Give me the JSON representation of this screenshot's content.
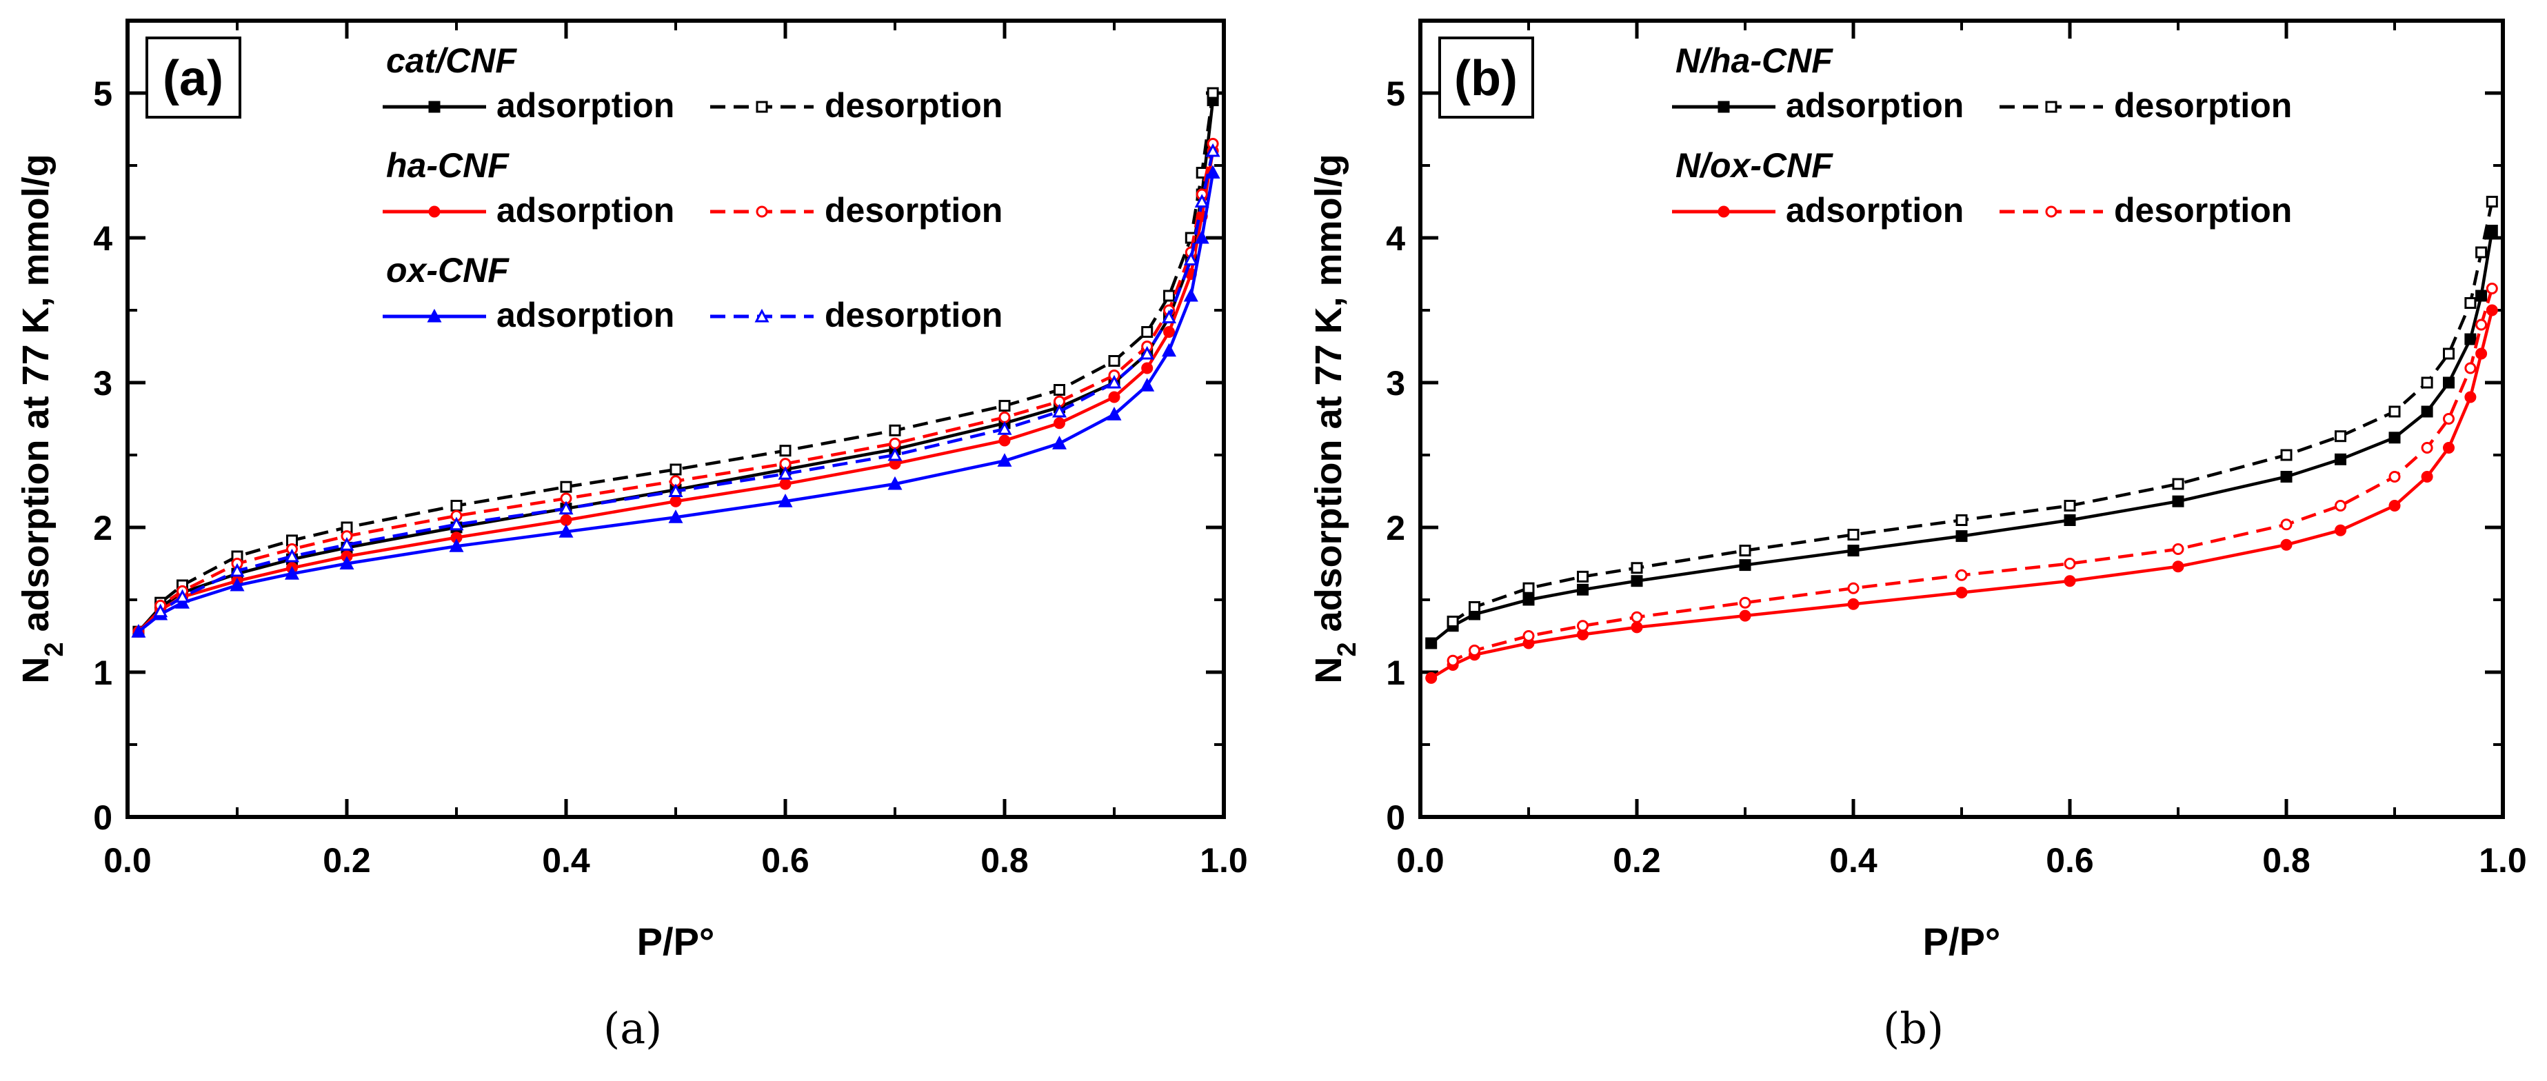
{
  "chart_data": [
    {
      "type": "line",
      "panel_label": "(a)",
      "caption": "(a)",
      "xlabel": "P/P°",
      "ylabel_main": "N",
      "ylabel_sub": "2",
      "ylabel_rest": " adsorption at 77 K, mmol/g",
      "xlim": [
        0.0,
        1.0
      ],
      "ylim": [
        0,
        5.5
      ],
      "xticks": [
        "0.0",
        "0.2",
        "0.4",
        "0.6",
        "0.8",
        "1.0"
      ],
      "yticks": [
        "0",
        "1",
        "2",
        "3",
        "4",
        "5"
      ],
      "legend": [
        {
          "sample": "cat/CNF",
          "adsorption": "adsorption",
          "desorption": "desorption",
          "color": "#000000"
        },
        {
          "sample": "ha-CNF",
          "adsorption": "adsorption",
          "desorption": "desorption",
          "color": "#ff0000"
        },
        {
          "sample": "ox-CNF",
          "adsorption": "adsorption",
          "desorption": "desorption",
          "color": "#0000ff"
        }
      ],
      "series": [
        {
          "name": "cat/CNF adsorption",
          "style": "solid",
          "marker": "square-filled",
          "color": "#000000",
          "x": [
            0.01,
            0.03,
            0.05,
            0.1,
            0.15,
            0.2,
            0.3,
            0.4,
            0.5,
            0.6,
            0.7,
            0.8,
            0.85,
            0.9,
            0.93,
            0.95,
            0.97,
            0.98,
            0.99
          ],
          "y": [
            1.28,
            1.45,
            1.55,
            1.68,
            1.78,
            1.86,
            2.0,
            2.13,
            2.26,
            2.4,
            2.54,
            2.72,
            2.83,
            3.0,
            3.2,
            3.45,
            3.85,
            4.3,
            4.95
          ]
        },
        {
          "name": "cat/CNF desorption",
          "style": "dashed",
          "marker": "square-open",
          "color": "#000000",
          "x": [
            0.99,
            0.98,
            0.97,
            0.95,
            0.93,
            0.9,
            0.85,
            0.8,
            0.7,
            0.6,
            0.5,
            0.4,
            0.3,
            0.2,
            0.15,
            0.1,
            0.05,
            0.03
          ],
          "y": [
            5.0,
            4.45,
            4.0,
            3.6,
            3.35,
            3.15,
            2.95,
            2.84,
            2.67,
            2.53,
            2.4,
            2.28,
            2.15,
            2.0,
            1.91,
            1.8,
            1.6,
            1.48
          ]
        },
        {
          "name": "ha-CNF adsorption",
          "style": "solid",
          "marker": "circle-filled",
          "color": "#ff0000",
          "x": [
            0.01,
            0.03,
            0.05,
            0.1,
            0.15,
            0.2,
            0.3,
            0.4,
            0.5,
            0.6,
            0.7,
            0.8,
            0.85,
            0.9,
            0.93,
            0.95,
            0.97,
            0.98,
            0.99
          ],
          "y": [
            1.28,
            1.43,
            1.52,
            1.63,
            1.72,
            1.8,
            1.93,
            2.05,
            2.18,
            2.3,
            2.44,
            2.6,
            2.72,
            2.9,
            3.1,
            3.35,
            3.75,
            4.15,
            4.6
          ]
        },
        {
          "name": "ha-CNF desorption",
          "style": "dashed",
          "marker": "circle-open",
          "color": "#ff0000",
          "x": [
            0.99,
            0.98,
            0.97,
            0.95,
            0.93,
            0.9,
            0.85,
            0.8,
            0.7,
            0.6,
            0.5,
            0.4,
            0.3,
            0.2,
            0.15,
            0.1,
            0.05,
            0.03
          ],
          "y": [
            4.65,
            4.3,
            3.9,
            3.5,
            3.25,
            3.05,
            2.87,
            2.76,
            2.58,
            2.44,
            2.32,
            2.2,
            2.08,
            1.94,
            1.85,
            1.75,
            1.56,
            1.46
          ]
        },
        {
          "name": "ox-CNF adsorption",
          "style": "solid",
          "marker": "triangle-filled",
          "color": "#0000ff",
          "x": [
            0.01,
            0.03,
            0.05,
            0.1,
            0.15,
            0.2,
            0.3,
            0.4,
            0.5,
            0.6,
            0.7,
            0.8,
            0.85,
            0.9,
            0.93,
            0.95,
            0.97,
            0.98,
            0.99
          ],
          "y": [
            1.28,
            1.4,
            1.48,
            1.6,
            1.68,
            1.75,
            1.87,
            1.97,
            2.07,
            2.18,
            2.3,
            2.46,
            2.58,
            2.78,
            2.98,
            3.22,
            3.6,
            4.0,
            4.45
          ]
        },
        {
          "name": "ox-CNF desorption",
          "style": "dashed",
          "marker": "triangle-open",
          "color": "#0000ff",
          "x": [
            0.99,
            0.98,
            0.97,
            0.95,
            0.93,
            0.9,
            0.85,
            0.8,
            0.7,
            0.6,
            0.5,
            0.4,
            0.3,
            0.2,
            0.15,
            0.1,
            0.05,
            0.03
          ],
          "y": [
            4.6,
            4.25,
            3.85,
            3.45,
            3.2,
            3.0,
            2.8,
            2.68,
            2.5,
            2.37,
            2.25,
            2.13,
            2.02,
            1.88,
            1.8,
            1.7,
            1.52,
            1.42
          ]
        }
      ]
    },
    {
      "type": "line",
      "panel_label": "(b)",
      "caption": "(b)",
      "xlabel": "P/P°",
      "ylabel_main": "N",
      "ylabel_sub": "2",
      "ylabel_rest": " adsorption at 77 K, mmol/g",
      "xlim": [
        0.0,
        1.0
      ],
      "ylim": [
        0,
        5.5
      ],
      "xticks": [
        "0.0",
        "0.2",
        "0.4",
        "0.6",
        "0.8",
        "1.0"
      ],
      "yticks": [
        "0",
        "1",
        "2",
        "3",
        "4",
        "5"
      ],
      "legend": [
        {
          "sample": "N/ha-CNF",
          "adsorption": "adsorption",
          "desorption": "desorption",
          "color": "#000000"
        },
        {
          "sample": "N/ox-CNF",
          "adsorption": "adsorption",
          "desorption": "desorption",
          "color": "#ff0000"
        }
      ],
      "series": [
        {
          "name": "N/ha-CNF adsorption",
          "style": "solid",
          "marker": "square-filled",
          "color": "#000000",
          "x": [
            0.01,
            0.03,
            0.05,
            0.1,
            0.15,
            0.2,
            0.3,
            0.4,
            0.5,
            0.6,
            0.7,
            0.8,
            0.85,
            0.9,
            0.93,
            0.95,
            0.97,
            0.98,
            0.99
          ],
          "y": [
            1.2,
            1.32,
            1.4,
            1.5,
            1.57,
            1.63,
            1.74,
            1.84,
            1.94,
            2.05,
            2.18,
            2.35,
            2.47,
            2.62,
            2.8,
            3.0,
            3.3,
            3.6,
            4.05
          ]
        },
        {
          "name": "N/ha-CNF desorption",
          "style": "dashed",
          "marker": "square-open",
          "color": "#000000",
          "x": [
            0.99,
            0.98,
            0.97,
            0.95,
            0.93,
            0.9,
            0.85,
            0.8,
            0.7,
            0.6,
            0.5,
            0.4,
            0.3,
            0.2,
            0.15,
            0.1,
            0.05,
            0.03
          ],
          "y": [
            4.25,
            3.9,
            3.55,
            3.2,
            3.0,
            2.8,
            2.63,
            2.5,
            2.3,
            2.15,
            2.05,
            1.95,
            1.84,
            1.72,
            1.66,
            1.58,
            1.45,
            1.35
          ]
        },
        {
          "name": "N/ox-CNF adsorption",
          "style": "solid",
          "marker": "circle-filled",
          "color": "#ff0000",
          "x": [
            0.01,
            0.03,
            0.05,
            0.1,
            0.15,
            0.2,
            0.3,
            0.4,
            0.5,
            0.6,
            0.7,
            0.8,
            0.85,
            0.9,
            0.93,
            0.95,
            0.97,
            0.98,
            0.99
          ],
          "y": [
            0.96,
            1.05,
            1.12,
            1.2,
            1.26,
            1.31,
            1.39,
            1.47,
            1.55,
            1.63,
            1.73,
            1.88,
            1.98,
            2.15,
            2.35,
            2.55,
            2.9,
            3.2,
            3.5
          ]
        },
        {
          "name": "N/ox-CNF desorption",
          "style": "dashed",
          "marker": "circle-open",
          "color": "#ff0000",
          "x": [
            0.99,
            0.98,
            0.97,
            0.95,
            0.93,
            0.9,
            0.85,
            0.8,
            0.7,
            0.6,
            0.5,
            0.4,
            0.3,
            0.2,
            0.15,
            0.1,
            0.05,
            0.03
          ],
          "y": [
            3.65,
            3.4,
            3.1,
            2.75,
            2.55,
            2.35,
            2.15,
            2.02,
            1.85,
            1.75,
            1.67,
            1.58,
            1.48,
            1.38,
            1.32,
            1.25,
            1.15,
            1.08
          ]
        }
      ]
    }
  ]
}
